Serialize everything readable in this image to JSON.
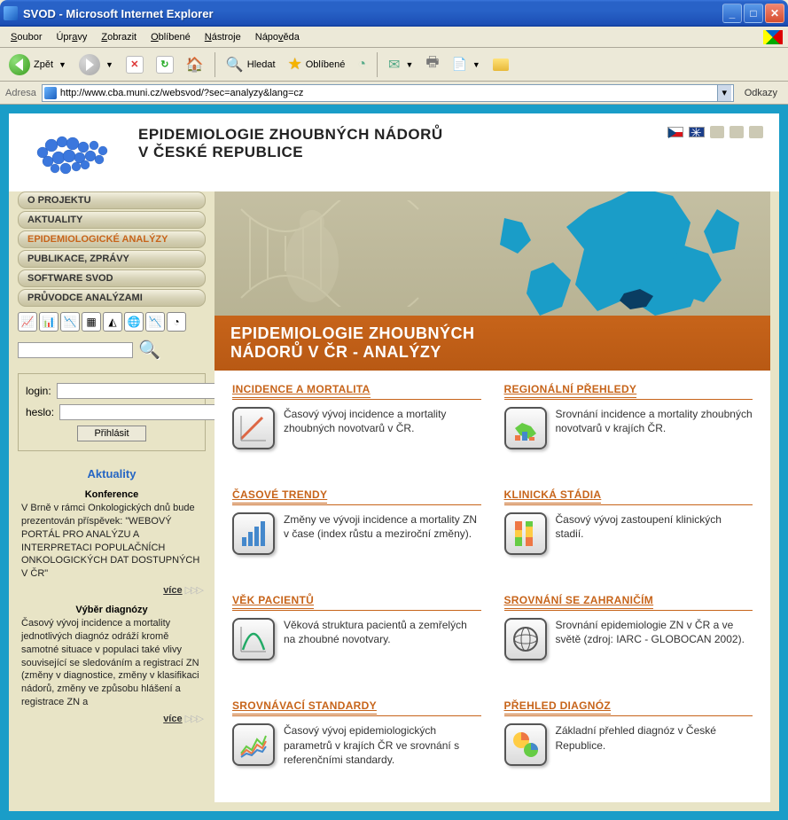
{
  "window": {
    "title": "SVOD - Microsoft Internet Explorer",
    "menu": [
      "Soubor",
      "Úpravy",
      "Zobrazit",
      "Oblíbené",
      "Nástroje",
      "Nápověda"
    ],
    "toolbar": {
      "back": "Zpět",
      "search": "Hledat",
      "favorites": "Oblíbené"
    },
    "address_label": "Adresa",
    "url": "http://www.cba.muni.cz/websvod/?sec=analyzy&lang=cz",
    "links_label": "Odkazy"
  },
  "header": {
    "title_line1": "EPIDEMIOLOGIE ZHOUBNÝCH NÁDORŮ",
    "title_line2": "V ČESKÉ REPUBLICE"
  },
  "nav": [
    {
      "label": "O PROJEKTU",
      "active": false
    },
    {
      "label": "AKTUALITY",
      "active": false
    },
    {
      "label": "EPIDEMIOLOGICKÉ ANALÝZY",
      "active": true
    },
    {
      "label": "PUBLIKACE, ZPRÁVY",
      "active": false
    },
    {
      "label": "SOFTWARE SVOD",
      "active": false
    },
    {
      "label": "PRŮVODCE ANALÝZAMI",
      "active": false
    }
  ],
  "login": {
    "login_label": "login:",
    "pass_label": "heslo:",
    "submit": "Přihlásit"
  },
  "news": {
    "heading": "Aktuality",
    "items": [
      {
        "title": "Konference",
        "text": "V Brně v rámci Onkologických dnů bude prezentován příspěvek: \"WEBOVÝ PORTÁL PRO ANALÝZU A INTERPRETACI POPULAČNÍCH ONKOLOGICKÝCH DAT DOSTUPNÝCH V ČR\"",
        "more": "více"
      },
      {
        "title": "Výběr diagnózy",
        "text": "Časový vývoj incidence a mortality jednotlivých diagnóz odráží kromě samotné situace v populaci také vlivy související se sledováním a registrací ZN (změny v diagnostice, změny v klasifikaci nádorů, změny ve způsobu hlášení a registrace ZN a",
        "more": "více"
      }
    ]
  },
  "main": {
    "banner_title1": "EPIDEMIOLOGIE ZHOUBNÝCH",
    "banner_title2": "NÁDORŮ V ČR - ANALÝZY",
    "sections": [
      {
        "title": "INCIDENCE A MORTALITA",
        "desc": "Časový vývoj incidence a mortality zhoubných novotvarů v ČR.",
        "icon": "line"
      },
      {
        "title": "REGIONÁLNÍ PŘEHLEDY",
        "desc": "Srovnání incidence a mortality zhoubných novotvarů v krajích ČR.",
        "icon": "map"
      },
      {
        "title": "ČASOVÉ TRENDY",
        "desc": "Změny ve vývoji incidence a mortality ZN v čase (index růstu a meziroční změny).",
        "icon": "bars"
      },
      {
        "title": "KLINICKÁ STÁDIA",
        "desc": "Časový vývoj zastoupení klinických stadií.",
        "icon": "stack"
      },
      {
        "title": "VĚK PACIENTŮ",
        "desc": "Věková struktura pacientů a zemřelých na zhoubné novotvary.",
        "icon": "bell"
      },
      {
        "title": "SROVNÁNÍ SE ZAHRANIČÍM",
        "desc": "Srovnání epidemiologie ZN v ČR a ve světě (zdroj: IARC - GLOBOCAN 2002).",
        "icon": "globe"
      },
      {
        "title": "SROVNÁVACÍ STANDARDY",
        "desc": "Časový vývoj epidemiologických parametrů v krajích ČR ve srovnání s referenčními standardy.",
        "icon": "multi"
      },
      {
        "title": "PŘEHLED DIAGNÓZ",
        "desc": "Základní přehled diagnóz v České Republice.",
        "icon": "pies"
      }
    ]
  },
  "colors": {
    "page_bg": "#e8e4c6",
    "viewport_bg": "#1a9dc8",
    "orange": "#c7641a",
    "nav_text_active": "#c7641a",
    "europe_fill": "#1a9dc8",
    "link": "#2566c4"
  }
}
